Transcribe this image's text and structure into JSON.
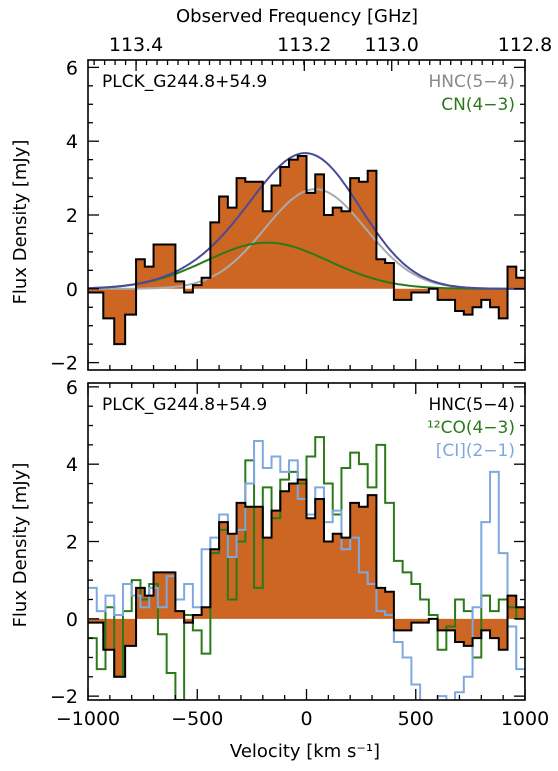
{
  "figure": {
    "top_axis_title": "Observed Frequency [GHz]",
    "x_axis_title": "Velocity [km s⁻¹]",
    "y_axis_title": "Flux Density [mJy]"
  },
  "chart_data": [
    {
      "type": "line",
      "panel": "top",
      "source_label": "PLCK_G244.8+54.9",
      "xlabel": "Velocity [km s⁻¹]",
      "ylabel": "Flux Density [mJy]",
      "top_xlabel": "Observed Frequency [GHz]",
      "xlim": [
        -1000,
        1000
      ],
      "ylim": [
        -2.2,
        6.2
      ],
      "x_ticks": [
        -1000,
        -500,
        0,
        500,
        1000
      ],
      "x_tick_labels": [
        "",
        "",
        "",
        "",
        ""
      ],
      "y_ticks": [
        -2,
        0,
        2,
        4,
        6
      ],
      "y_tick_labels": [
        "−2",
        "0",
        "2",
        "4",
        "6"
      ],
      "top_ticks": [
        {
          "label": "113.4",
          "velocity": -780
        },
        {
          "label": "113.2",
          "velocity": -10
        },
        {
          "label": "113.0",
          "velocity": 390
        },
        {
          "label": "112.8",
          "velocity": 1000
        }
      ],
      "grid": false,
      "legend_position": "top-right",
      "spectrum": {
        "fill_color": "#cc6622",
        "edge_color": "#000000",
        "bins": [
          -1000,
          -930,
          -880,
          -830,
          -780,
          -740,
          -700,
          -600,
          -560,
          -520,
          -480,
          -440,
          -400,
          -360,
          -320,
          -280,
          -240,
          -200,
          -160,
          -120,
          -80,
          -40,
          0,
          40,
          80,
          120,
          160,
          200,
          240,
          280,
          320,
          360,
          400,
          440,
          480,
          520,
          560,
          600,
          640,
          680,
          720,
          760,
          800,
          840,
          880,
          920,
          960,
          1000
        ],
        "values": [
          -0.1,
          -0.8,
          -1.5,
          -0.7,
          0.8,
          0.6,
          1.2,
          0.2,
          -0.1,
          0.1,
          0.3,
          1.8,
          2.5,
          2.2,
          3.0,
          2.9,
          2.9,
          2.1,
          2.8,
          3.3,
          3.5,
          3.6,
          2.6,
          3.1,
          2.0,
          2.2,
          2.1,
          3.0,
          2.9,
          3.2,
          0.8,
          0.7,
          -0.3,
          -0.3,
          -0.1,
          -0.1,
          0.0,
          -0.3,
          -0.3,
          -0.6,
          -0.7,
          -0.5,
          -0.3,
          -0.5,
          -0.8,
          0.6,
          0.3
        ]
      },
      "series": [
        {
          "name": "HNC(5−4)",
          "color": "#aaaaaa",
          "model": "gaussian",
          "amplitude": 2.7,
          "center": 40,
          "sigma": 230
        },
        {
          "name": "CN(4−3)",
          "color": "#2a7a1a",
          "model": "gaussian",
          "amplitude": 1.25,
          "center": -180,
          "sigma": 280
        },
        {
          "name": "",
          "color": "#4a4a9a",
          "model": "sum"
        }
      ],
      "legend": [
        {
          "name": "HNC(5−4)",
          "color": "#888888"
        },
        {
          "name": "CN(4−3)",
          "color": "#2a7a1a"
        }
      ]
    },
    {
      "type": "line",
      "panel": "bottom",
      "source_label": "PLCK_G244.8+54.9",
      "xlabel": "Velocity [km s⁻¹]",
      "ylabel": "Flux Density [mJy]",
      "xlim": [
        -1000,
        1000
      ],
      "ylim": [
        -2.1,
        6.1
      ],
      "x_ticks": [
        -1000,
        -500,
        0,
        500,
        1000
      ],
      "x_tick_labels": [
        "−1000",
        "−500",
        "0",
        "500",
        "1000"
      ],
      "y_ticks": [
        -2,
        0,
        2,
        4,
        6
      ],
      "y_tick_labels": [
        "−2",
        "0",
        "2",
        "4",
        "6"
      ],
      "grid": false,
      "legend_position": "top-right",
      "spectrum": {
        "name": "HNC(5−4)",
        "fill_color": "#cc6622",
        "edge_color": "#000000",
        "bins": [
          -1000,
          -930,
          -880,
          -830,
          -780,
          -740,
          -700,
          -600,
          -560,
          -520,
          -480,
          -440,
          -400,
          -360,
          -320,
          -280,
          -240,
          -200,
          -160,
          -120,
          -80,
          -40,
          0,
          40,
          80,
          120,
          160,
          200,
          240,
          280,
          320,
          360,
          400,
          440,
          480,
          520,
          560,
          600,
          640,
          680,
          720,
          760,
          800,
          840,
          880,
          920,
          960,
          1000
        ],
        "values": [
          -0.1,
          -0.8,
          -1.5,
          -0.7,
          0.8,
          0.6,
          1.2,
          0.2,
          -0.1,
          0.1,
          0.3,
          1.8,
          2.5,
          2.2,
          3.0,
          2.9,
          2.9,
          2.1,
          2.8,
          3.3,
          3.5,
          3.6,
          2.6,
          3.1,
          2.0,
          2.2,
          2.1,
          3.0,
          2.9,
          3.2,
          0.8,
          0.7,
          -0.3,
          -0.3,
          -0.1,
          -0.1,
          0.0,
          -0.3,
          -0.3,
          -0.6,
          -0.7,
          -0.5,
          -0.3,
          -0.5,
          -0.8,
          0.6,
          0.3
        ]
      },
      "series": [
        {
          "name": "¹²CO(4−3)",
          "color": "#2a7a1a",
          "bins": [
            -1000,
            -960,
            -920,
            -880,
            -840,
            -800,
            -760,
            -720,
            -680,
            -640,
            -600,
            -560,
            -520,
            -480,
            -440,
            -400,
            -360,
            -320,
            -280,
            -240,
            -200,
            -160,
            -120,
            -80,
            -40,
            0,
            40,
            80,
            120,
            160,
            200,
            240,
            280,
            320,
            360,
            400,
            440,
            480,
            520,
            560,
            600,
            640,
            680,
            720,
            760,
            800,
            840,
            880,
            920,
            960,
            1000
          ],
          "values": [
            -0.5,
            -1.3,
            0.3,
            -1.5,
            0.2,
            1.0,
            0.5,
            0.9,
            -0.4,
            -1.4,
            -2.1,
            0.1,
            -0.3,
            -0.9,
            1.7,
            2.3,
            0.5,
            2.0,
            4.1,
            0.8,
            3.4,
            2.6,
            3.6,
            3.8,
            3.5,
            4.2,
            4.7,
            3.5,
            2.7,
            3.9,
            4.3,
            4.0,
            3.4,
            4.5,
            3.0,
            1.5,
            1.2,
            0.9,
            0.5,
            0.1,
            -0.8,
            -0.2,
            0.5,
            0.2,
            -1.0,
            0.6,
            0.2,
            0.5,
            0.3,
            0.0
          ]
        },
        {
          "name": "[CI](2−1)",
          "color": "#7fa8e0",
          "bins": [
            -1000,
            -960,
            -920,
            -880,
            -840,
            -800,
            -760,
            -720,
            -680,
            -640,
            -600,
            -560,
            -520,
            -480,
            -440,
            -400,
            -360,
            -320,
            -280,
            -240,
            -200,
            -160,
            -120,
            -80,
            -40,
            0,
            40,
            80,
            120,
            160,
            200,
            240,
            280,
            320,
            360,
            400,
            440,
            480,
            520,
            560,
            600,
            640,
            680,
            720,
            760,
            800,
            840,
            880,
            920,
            960,
            1000
          ],
          "values": [
            0.8,
            0.2,
            0.6,
            0.1,
            0.9,
            0.6,
            0.3,
            0.8,
            0.3,
            1.1,
            0.5,
            0.9,
            0.3,
            1.8,
            2.1,
            2.7,
            1.6,
            2.3,
            3.5,
            4.6,
            3.9,
            4.2,
            3.8,
            4.1,
            3.1,
            2.7,
            3.4,
            2.5,
            2.8,
            1.8,
            2.1,
            1.2,
            0.9,
            0.2,
            0.1,
            -0.6,
            -1.0,
            -1.7,
            -2.2,
            -2.2,
            -2.0,
            -2.2,
            -1.9,
            -1.5,
            0.3,
            2.5,
            3.8,
            1.7,
            -0.2,
            -1.3,
            -1.8
          ]
        }
      ],
      "legend": [
        {
          "name": "HNC(5−4)",
          "color": "#000000"
        },
        {
          "name": "¹²CO(4−3)",
          "color": "#2a7a1a"
        },
        {
          "name": "[CI](2−1)",
          "color": "#7fa8e0"
        }
      ]
    }
  ]
}
